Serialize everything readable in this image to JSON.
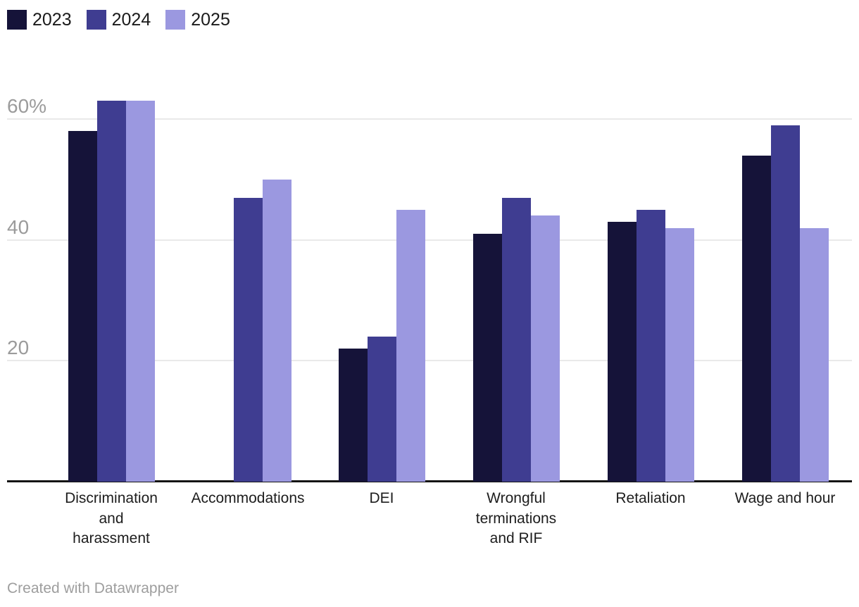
{
  "legend": {
    "items": [
      {
        "label": "2023"
      },
      {
        "label": "2024"
      },
      {
        "label": "2025"
      }
    ]
  },
  "footer": {
    "credit": "Created with Datawrapper"
  },
  "chart_data": {
    "type": "bar",
    "title": "",
    "xlabel": "",
    "ylabel": "",
    "unit": "%",
    "grid": true,
    "legend_position": "top-left",
    "ylim": [
      0,
      65
    ],
    "yticks": [
      {
        "value": 20,
        "label": "20"
      },
      {
        "value": 40,
        "label": "40"
      },
      {
        "value": 60,
        "label": "60%"
      }
    ],
    "categories": [
      "Discrimination\nand\nharassment",
      "Accommodations",
      "DEI",
      "Wrongful\nterminations\nand RIF",
      "Retaliation",
      "Wage and hour"
    ],
    "series": [
      {
        "name": "2023",
        "color": "#151339",
        "values": [
          58,
          null,
          22,
          41,
          43,
          54
        ]
      },
      {
        "name": "2024",
        "color": "#3F3D91",
        "values": [
          63,
          47,
          24,
          47,
          45,
          59
        ]
      },
      {
        "name": "2025",
        "color": "#9B98E0",
        "values": [
          63,
          50,
          45,
          44,
          42,
          42
        ]
      }
    ]
  }
}
